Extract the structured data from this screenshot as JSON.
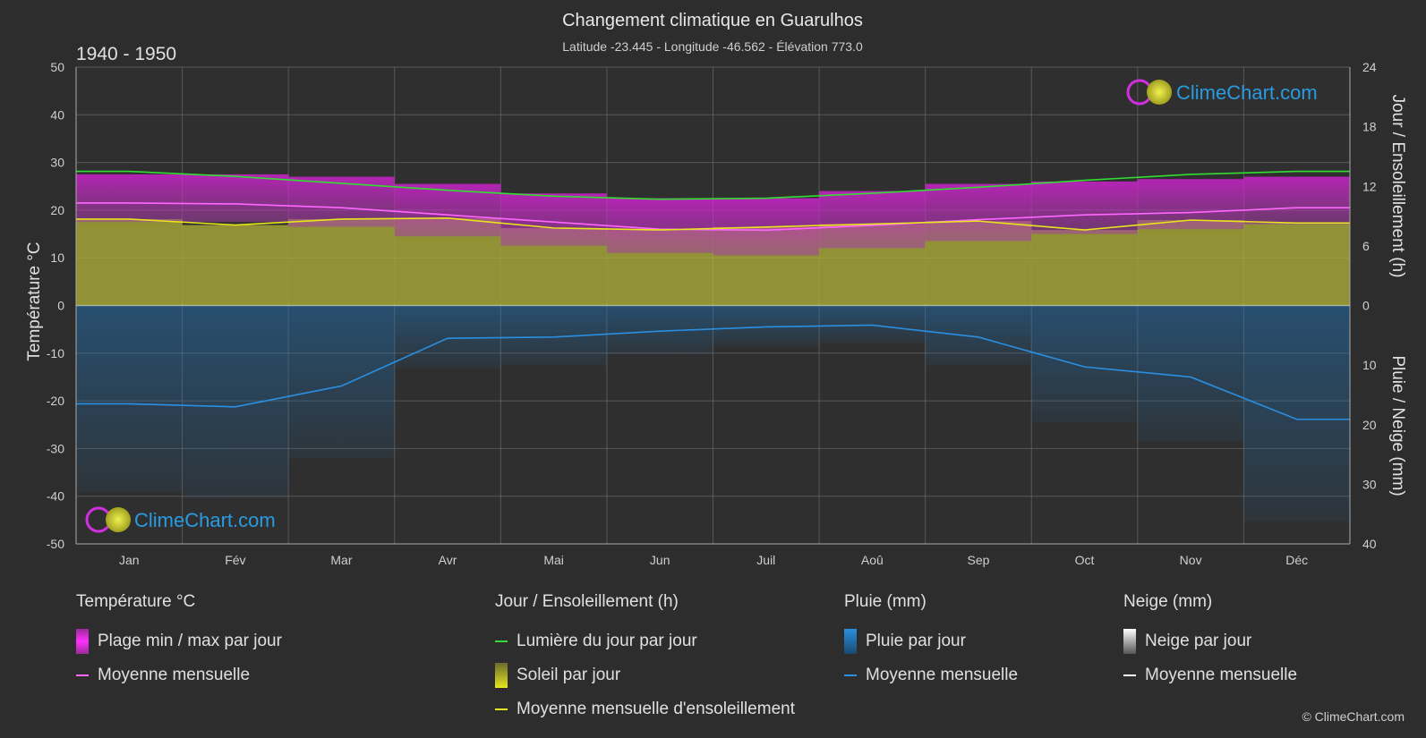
{
  "title": "Changement climatique en Guarulhos",
  "subtitle": "Latitude -23.445 - Longitude -46.562 - Élévation 773.0",
  "period": "1940 - 1950",
  "brand": "ClimeChart.com",
  "copyright": "© ClimeChart.com",
  "colors": {
    "background": "#2d2d2d",
    "temp_range": "#e020e0",
    "temp_mean": "#ff66ff",
    "daylight": "#33dd33",
    "sunshine": "#b3b33a",
    "sunshine_mean": "#e6e61a",
    "rain": "#1e73b8",
    "rain_mean": "#2a8fe0",
    "snow_mean": "#ffffff",
    "brand": "#2a9be0"
  },
  "chart_data": {
    "type": "line",
    "categories": [
      "Jan",
      "Fév",
      "Mar",
      "Avr",
      "Mai",
      "Jun",
      "Juil",
      "Aoû",
      "Sep",
      "Oct",
      "Nov",
      "Déc"
    ],
    "left_axis": {
      "label": "Température °C",
      "range": [
        -50,
        50
      ],
      "ticks": [
        50,
        40,
        30,
        20,
        10,
        0,
        -10,
        -20,
        -30,
        -40,
        -50
      ]
    },
    "right_axis_top": {
      "label": "Jour / Ensoleillement (h)",
      "range": [
        0,
        24
      ],
      "ticks": [
        24,
        18,
        12,
        6,
        0
      ]
    },
    "right_axis_bottom": {
      "label": "Pluie / Neige (mm)",
      "range": [
        0,
        40
      ],
      "ticks": [
        0,
        10,
        20,
        30,
        40
      ]
    },
    "series": [
      {
        "name": "Lumière du jour par jour",
        "axis": "hours",
        "values": [
          13.5,
          13.0,
          12.3,
          11.6,
          11.0,
          10.7,
          10.8,
          11.3,
          11.9,
          12.6,
          13.2,
          13.5
        ]
      },
      {
        "name": "Moyenne mensuelle (température)",
        "axis": "temp",
        "values": [
          21.5,
          21.3,
          20.5,
          19.0,
          17.5,
          16.0,
          15.8,
          16.8,
          18.0,
          19.0,
          19.5,
          20.5
        ]
      },
      {
        "name": "Moyenne mensuelle d'ensoleillement",
        "axis": "hours",
        "values": [
          8.7,
          8.1,
          8.7,
          8.8,
          7.8,
          7.6,
          7.9,
          8.2,
          8.5,
          7.6,
          8.6,
          8.3
        ]
      },
      {
        "name": "Plage min / max par jour (max)",
        "axis": "temp",
        "values": [
          27.5,
          27.5,
          27.0,
          25.5,
          23.5,
          22.5,
          22.5,
          24.0,
          25.5,
          26.0,
          26.5,
          27.0
        ]
      },
      {
        "name": "Plage min / max par jour (min)",
        "axis": "temp",
        "values": [
          17.5,
          17.5,
          16.5,
          14.5,
          12.5,
          11.0,
          10.5,
          12.0,
          13.5,
          15.0,
          16.0,
          17.0
        ]
      },
      {
        "name": "Pluie moyenne mensuelle",
        "axis": "rain",
        "values": [
          16.5,
          17.0,
          13.5,
          5.5,
          5.3,
          4.3,
          3.6,
          3.3,
          5.3,
          10.3,
          12.0,
          19.1
        ]
      }
    ]
  },
  "legend": {
    "temperature": {
      "title": "Température °C",
      "items": [
        "Plage min / max par jour",
        "Moyenne mensuelle"
      ]
    },
    "sun": {
      "title": "Jour / Ensoleillement (h)",
      "items": [
        "Lumière du jour par jour",
        "Soleil par jour",
        "Moyenne mensuelle d'ensoleillement"
      ]
    },
    "rain": {
      "title": "Pluie (mm)",
      "items": [
        "Pluie par jour",
        "Moyenne mensuelle"
      ]
    },
    "snow": {
      "title": "Neige (mm)",
      "items": [
        "Neige par jour",
        "Moyenne mensuelle"
      ]
    }
  }
}
